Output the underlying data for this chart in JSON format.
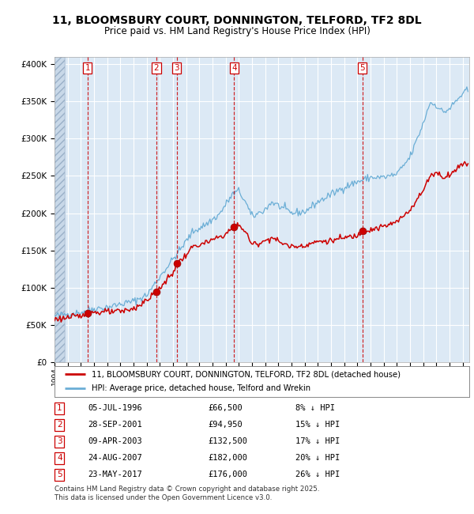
{
  "title_line1": "11, BLOOMSBURY COURT, DONNINGTON, TELFORD, TF2 8DL",
  "title_line2": "Price paid vs. HM Land Registry's House Price Index (HPI)",
  "legend_house": "11, BLOOMSBURY COURT, DONNINGTON, TELFORD, TF2 8DL (detached house)",
  "legend_hpi": "HPI: Average price, detached house, Telford and Wrekin",
  "footnote": "Contains HM Land Registry data © Crown copyright and database right 2025.\nThis data is licensed under the Open Government Licence v3.0.",
  "sales": [
    {
      "num": 1,
      "date": "05-JUL-1996",
      "price": 66500,
      "pct": "8%",
      "year_x": 1996.51
    },
    {
      "num": 2,
      "date": "28-SEP-2001",
      "price": 94950,
      "pct": "15%",
      "year_x": 2001.74
    },
    {
      "num": 3,
      "date": "09-APR-2003",
      "price": 132500,
      "pct": "17%",
      "year_x": 2003.27
    },
    {
      "num": 4,
      "date": "24-AUG-2007",
      "price": 182000,
      "pct": "20%",
      "year_x": 2007.64
    },
    {
      "num": 5,
      "date": "23-MAY-2017",
      "price": 176000,
      "pct": "26%",
      "year_x": 2017.39
    }
  ],
  "hpi_color": "#6baed6",
  "house_color": "#cc0000",
  "plot_bg": "#dce9f5",
  "ylim": [
    0,
    410000
  ],
  "xlim_start": 1994.0,
  "xlim_end": 2025.5,
  "hpi_anchors": [
    [
      1994.0,
      62000
    ],
    [
      1995.0,
      65000
    ],
    [
      1996.0,
      67000
    ],
    [
      1997.0,
      72000
    ],
    [
      1998.0,
      74000
    ],
    [
      1999.0,
      78000
    ],
    [
      2000.0,
      82000
    ],
    [
      2001.0,
      90000
    ],
    [
      2002.0,
      115000
    ],
    [
      2003.5,
      150000
    ],
    [
      2004.5,
      175000
    ],
    [
      2005.5,
      185000
    ],
    [
      2006.5,
      198000
    ],
    [
      2007.5,
      225000
    ],
    [
      2008.0,
      230000
    ],
    [
      2008.5,
      215000
    ],
    [
      2009.0,
      195000
    ],
    [
      2009.5,
      200000
    ],
    [
      2010.0,
      205000
    ],
    [
      2010.5,
      215000
    ],
    [
      2011.0,
      210000
    ],
    [
      2012.0,
      200000
    ],
    [
      2013.0,
      202000
    ],
    [
      2014.0,
      215000
    ],
    [
      2015.0,
      225000
    ],
    [
      2016.0,
      235000
    ],
    [
      2017.0,
      242000
    ],
    [
      2018.0,
      248000
    ],
    [
      2019.0,
      248000
    ],
    [
      2020.0,
      252000
    ],
    [
      2021.0,
      275000
    ],
    [
      2022.0,
      320000
    ],
    [
      2022.5,
      348000
    ],
    [
      2023.0,
      345000
    ],
    [
      2023.5,
      335000
    ],
    [
      2024.0,
      340000
    ],
    [
      2024.5,
      350000
    ],
    [
      2025.0,
      360000
    ],
    [
      2025.4,
      365000
    ]
  ],
  "house_anchors": [
    [
      1994.0,
      58000
    ],
    [
      1995.0,
      60000
    ],
    [
      1996.0,
      62000
    ],
    [
      1996.51,
      66500
    ],
    [
      1997.0,
      67000
    ],
    [
      1998.0,
      67500
    ],
    [
      1999.0,
      68000
    ],
    [
      2000.0,
      72000
    ],
    [
      2001.0,
      83000
    ],
    [
      2001.74,
      94950
    ],
    [
      2002.0,
      100000
    ],
    [
      2003.0,
      120000
    ],
    [
      2003.27,
      132500
    ],
    [
      2003.8,
      140000
    ],
    [
      2004.5,
      155000
    ],
    [
      2005.5,
      160000
    ],
    [
      2006.5,
      168000
    ],
    [
      2007.0,
      172000
    ],
    [
      2007.64,
      182000
    ],
    [
      2008.0,
      185000
    ],
    [
      2008.5,
      175000
    ],
    [
      2009.0,
      158000
    ],
    [
      2009.5,
      160000
    ],
    [
      2010.0,
      163000
    ],
    [
      2010.5,
      168000
    ],
    [
      2011.0,
      162000
    ],
    [
      2012.0,
      155000
    ],
    [
      2013.0,
      157000
    ],
    [
      2014.0,
      162000
    ],
    [
      2015.0,
      163000
    ],
    [
      2016.0,
      167000
    ],
    [
      2017.0,
      170000
    ],
    [
      2017.39,
      176000
    ],
    [
      2017.5,
      175000
    ],
    [
      2018.0,
      178000
    ],
    [
      2019.0,
      182000
    ],
    [
      2020.0,
      188000
    ],
    [
      2021.0,
      205000
    ],
    [
      2022.0,
      230000
    ],
    [
      2022.5,
      250000
    ],
    [
      2023.0,
      255000
    ],
    [
      2023.5,
      248000
    ],
    [
      2024.0,
      252000
    ],
    [
      2024.5,
      258000
    ],
    [
      2025.0,
      268000
    ],
    [
      2025.4,
      265000
    ]
  ]
}
